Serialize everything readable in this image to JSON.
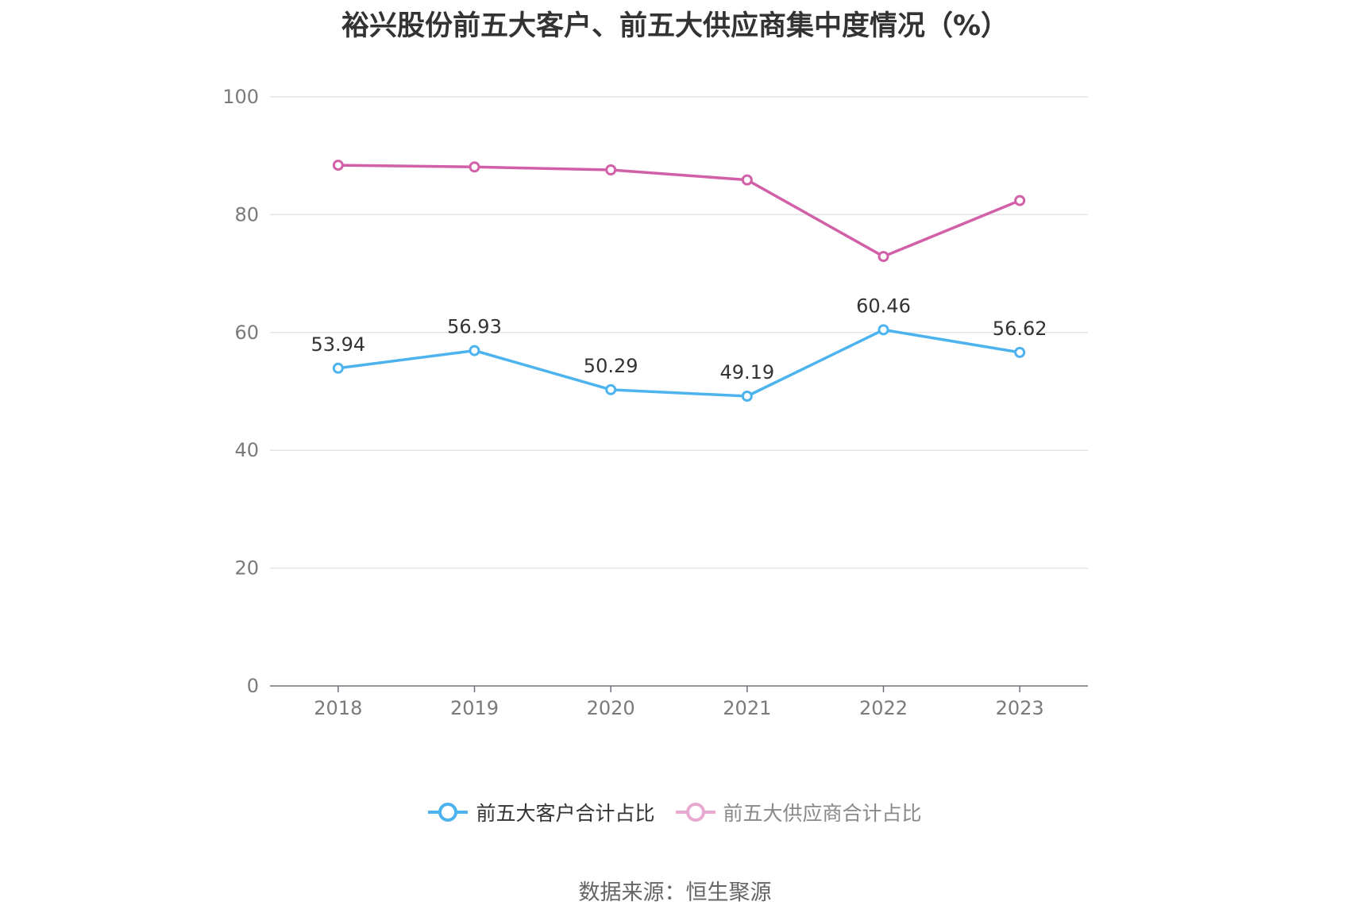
{
  "chart_data": {
    "type": "line",
    "title": "裕兴股份前五大客户、前五大供应商集中度情况（%）",
    "categories": [
      "2018",
      "2019",
      "2020",
      "2021",
      "2022",
      "2023"
    ],
    "ylim": [
      0,
      100
    ],
    "yticks": [
      0,
      20,
      40,
      60,
      80,
      100
    ],
    "grid": true,
    "legend_position": "bottom",
    "series": [
      {
        "name": "前五大客户合计占比",
        "color": "#4db3ee",
        "values": [
          53.94,
          56.93,
          50.29,
          49.19,
          60.46,
          56.62
        ],
        "labels_shown": true
      },
      {
        "name": "前五大供应商合计占比",
        "color": "#d160a8",
        "legend_color": "#e8a9d1",
        "values": [
          88.4,
          88.1,
          87.6,
          85.9,
          72.9,
          82.4
        ],
        "labels_shown": false
      }
    ]
  },
  "source": "数据来源：恒生聚源"
}
